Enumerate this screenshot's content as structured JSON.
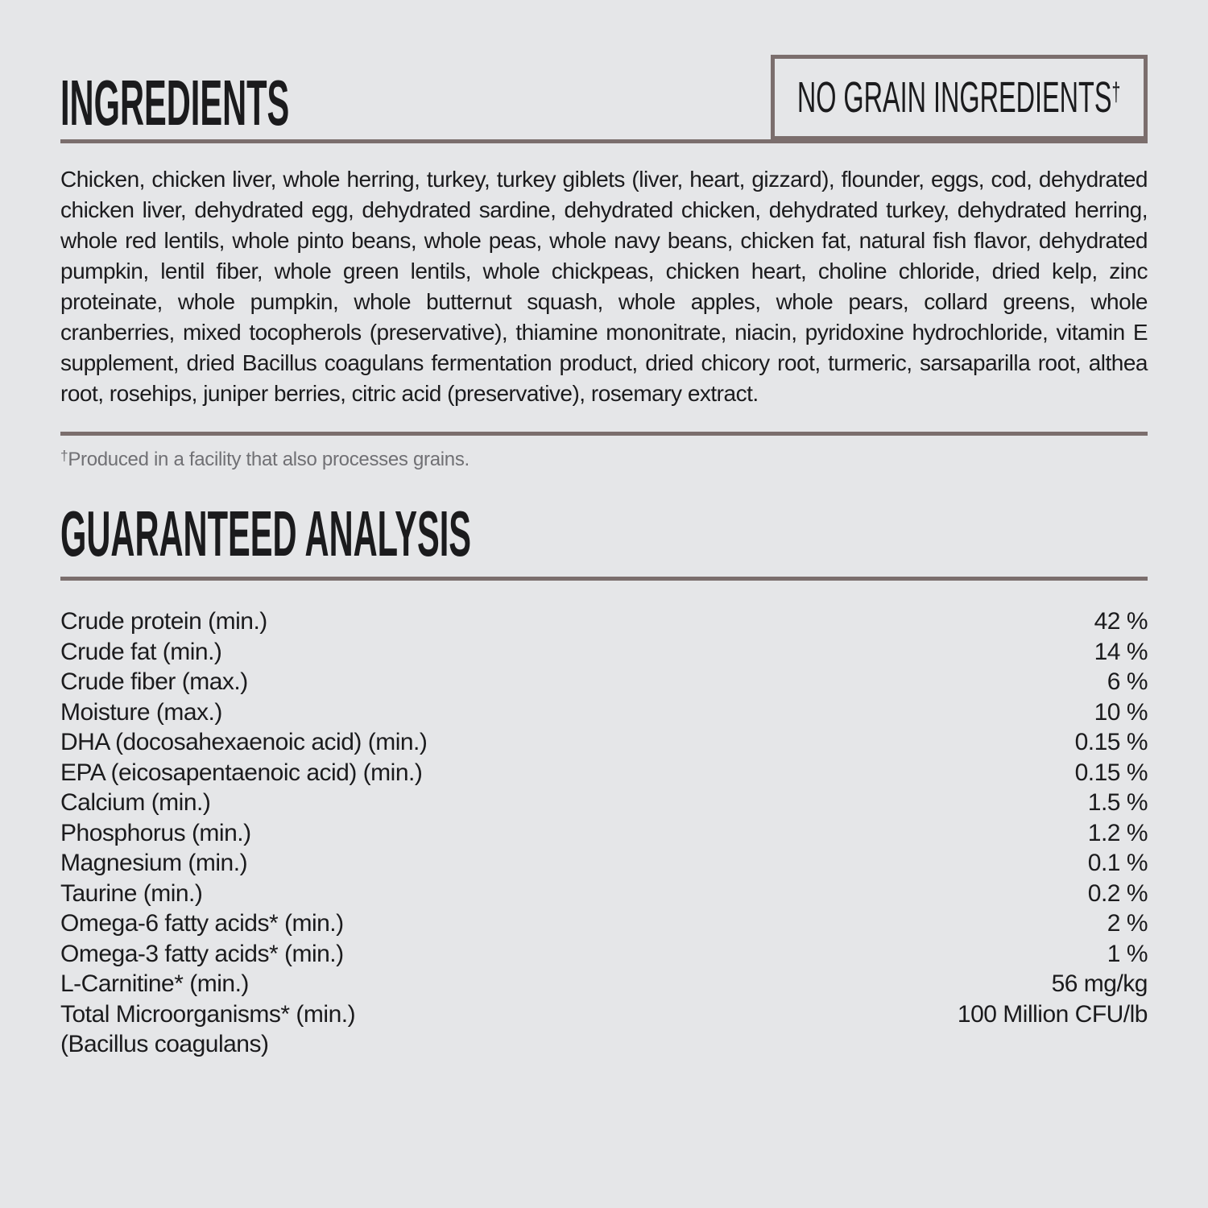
{
  "colors": {
    "background": "#e5e6e8",
    "text": "#1b1b1d",
    "rule": "#7b6e6d",
    "muted": "#707074"
  },
  "ingredients_section": {
    "title": "INGREDIENTS",
    "no_grain_badge": {
      "text": "NO GRAIN INGREDIENTS",
      "dagger": "†"
    },
    "body": "Chicken, chicken liver, whole herring, turkey, turkey giblets (liver, heart, gizzard), flounder, eggs, cod, dehydrated chicken liver, dehydrated egg, dehydrated sardine, dehydrated chicken, dehydrated turkey, dehydrated herring, whole red lentils, whole pinto beans, whole peas, whole navy beans, chicken fat, natural fish flavor, dehydrated pumpkin, lentil fiber, whole green lentils, whole chickpeas, chicken heart, choline chloride, dried kelp, zinc proteinate, whole pumpkin, whole butternut squash, whole apples, whole pears, collard greens, whole cranberries, mixed tocopherols (preservative), thiamine mononitrate, niacin, pyridoxine hydrochloride, vitamin E supplement, dried Bacillus coagulans fermentation product, dried chicory root, turmeric, sarsaparilla root, althea root, rosehips, juniper berries, citric acid (preservative), rosemary extract.",
    "footnote": {
      "dagger": "†",
      "text": "Produced in a facility that also processes grains."
    }
  },
  "analysis_section": {
    "title": "GUARANTEED ANALYSIS",
    "rows": [
      {
        "label": "Crude protein (min.)",
        "value": "42 %"
      },
      {
        "label": "Crude fat (min.)",
        "value": "14 %"
      },
      {
        "label": "Crude fiber (max.)",
        "value": "6 %"
      },
      {
        "label": "Moisture (max.)",
        "value": "10 %"
      },
      {
        "label": "DHA (docosahexaenoic acid) (min.)",
        "value": "0.15 %"
      },
      {
        "label": "EPA (eicosapentaenoic acid) (min.)",
        "value": "0.15 %"
      },
      {
        "label": "Calcium (min.)",
        "value": "1.5 %"
      },
      {
        "label": "Phosphorus (min.)",
        "value": "1.2 %"
      },
      {
        "label": "Magnesium (min.)",
        "value": "0.1 %"
      },
      {
        "label": "Taurine (min.)",
        "value": "0.2 %"
      },
      {
        "label": "Omega-6 fatty acids* (min.)",
        "value": "2 %"
      },
      {
        "label": "Omega-3 fatty acids* (min.)",
        "value": "1 %"
      },
      {
        "label": "L-Carnitine* (min.)",
        "value": "56 mg/kg"
      },
      {
        "label": "Total Microorganisms* (min.)",
        "value": "100 Million CFU/lb"
      },
      {
        "label": "(Bacillus coagulans)",
        "value": ""
      }
    ]
  }
}
